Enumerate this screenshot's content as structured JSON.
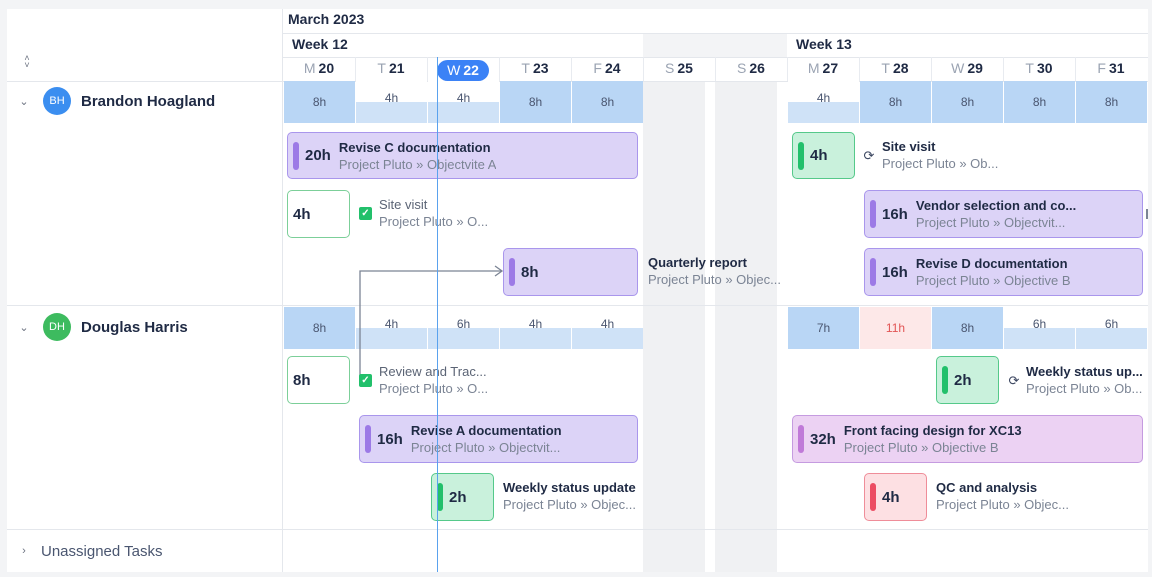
{
  "header": {
    "month": "March 2023",
    "weeks": [
      "Week 12",
      "Week 13"
    ],
    "days": [
      {
        "letter": "M",
        "num": "20"
      },
      {
        "letter": "T",
        "num": "21"
      },
      {
        "letter": "W",
        "num": "22",
        "today": true
      },
      {
        "letter": "T",
        "num": "23"
      },
      {
        "letter": "F",
        "num": "24"
      },
      {
        "letter": "S",
        "num": "25"
      },
      {
        "letter": "S",
        "num": "26"
      },
      {
        "letter": "M",
        "num": "27"
      },
      {
        "letter": "T",
        "num": "28"
      },
      {
        "letter": "W",
        "num": "29"
      },
      {
        "letter": "T",
        "num": "30"
      },
      {
        "letter": "F",
        "num": "31"
      }
    ]
  },
  "collapse_icon": "double-chevron-up-down-icon",
  "people": [
    {
      "initials": "BH",
      "name": "Brandon Hoagland",
      "avatar_color": "#3b8ef0",
      "capacity": [
        "8h",
        "4h",
        "4h",
        "8h",
        "8h",
        "",
        "",
        "4h",
        "8h",
        "8h",
        "8h",
        "8h"
      ],
      "tasks": [
        {
          "hours": "20h",
          "title": "Revise C documentation",
          "sub": "Project Pluto » Objectvite A"
        },
        {
          "hours": "4h",
          "title": "Site visit",
          "sub": "Project Pluto » Ob..."
        },
        {
          "hours": "4h",
          "title": "Site visit",
          "sub": "Project Pluto » O..."
        },
        {
          "hours": "16h",
          "title": "Vendor selection and co...",
          "sub": "Project Pluto » Objectvit..."
        },
        {
          "hours": "8h",
          "title": "Quarterly report",
          "sub": "Project Pluto » Objec..."
        },
        {
          "hours": "16h",
          "title": "Revise D documentation",
          "sub": "Project Pluto » Objective B"
        }
      ]
    },
    {
      "initials": "DH",
      "name": "Douglas Harris",
      "avatar_color": "#3dbb5f",
      "capacity": [
        "8h",
        "4h",
        "6h",
        "4h",
        "4h",
        "",
        "",
        "7h",
        "11h",
        "8h",
        "6h",
        "6h"
      ],
      "tasks": [
        {
          "hours": "8h",
          "title": "Review and Trac...",
          "sub": "Project Pluto » O..."
        },
        {
          "hours": "2h",
          "title": "Weekly status up...",
          "sub": "Project Pluto » Ob..."
        },
        {
          "hours": "16h",
          "title": "Revise A documentation",
          "sub": "Project Pluto » Objectvit..."
        },
        {
          "hours": "32h",
          "title": "Front facing design for XC13",
          "sub": "Project Pluto » Objective B"
        },
        {
          "hours": "2h",
          "title": "Weekly status update",
          "sub": "Project Pluto » Objec..."
        },
        {
          "hours": "4h",
          "title": "QC and analysis",
          "sub": "Project Pluto » Objec..."
        }
      ]
    }
  ],
  "unassigned_label": "Unassigned Tasks",
  "colors": {
    "today": "#3b82f6",
    "task_purple": "#dcd3f7",
    "task_green": "#c9f1dc",
    "task_red": "#fde0e3",
    "task_pink": "#ecd2f3",
    "capacity": "#b9d6f5",
    "over_capacity": "#e25555"
  }
}
